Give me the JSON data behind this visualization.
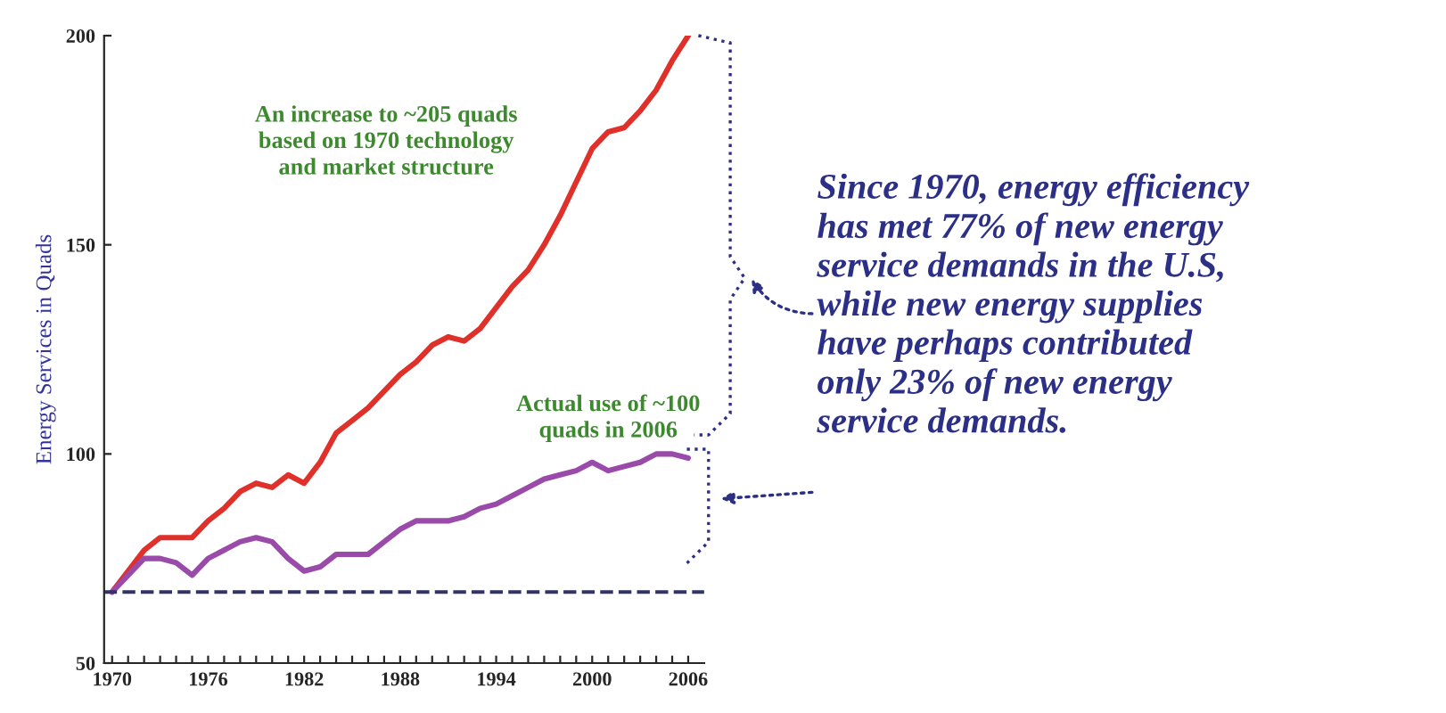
{
  "chart_data": {
    "type": "line",
    "ylabel": "Energy Services in Quads",
    "x": [
      1970,
      1971,
      1972,
      1973,
      1974,
      1975,
      1976,
      1977,
      1978,
      1979,
      1980,
      1981,
      1982,
      1983,
      1984,
      1985,
      1986,
      1987,
      1988,
      1989,
      1990,
      1991,
      1992,
      1993,
      1994,
      1995,
      1996,
      1997,
      1998,
      1999,
      2000,
      2001,
      2002,
      2003,
      2004,
      2005,
      2006
    ],
    "series": [
      {
        "color": "#e0302a",
        "values": [
          67,
          72,
          77,
          80,
          80,
          80,
          84,
          87,
          91,
          93,
          92,
          95,
          93,
          98,
          105,
          108,
          111,
          115,
          119,
          122,
          126,
          128,
          127,
          130,
          135,
          140,
          144,
          150,
          157,
          165,
          173,
          177,
          178,
          182,
          187,
          194,
          200
        ]
      },
      {
        "color": "#9a4aa8",
        "values": [
          67,
          71,
          75,
          75,
          74,
          71,
          75,
          77,
          79,
          80,
          79,
          75,
          72,
          73,
          76,
          76,
          76,
          79,
          82,
          84,
          84,
          84,
          85,
          87,
          88,
          90,
          92,
          94,
          95,
          96,
          98,
          96,
          97,
          98,
          100,
          100,
          99
        ]
      }
    ],
    "ref_lines": [
      {
        "axis": "y",
        "value": 67,
        "line_style": "dashed",
        "color": "#333366"
      }
    ],
    "xlim": [
      1969.5,
      2007
    ],
    "ylim": [
      50,
      200
    ],
    "yticks": [
      50,
      100,
      150,
      200
    ],
    "xticks": [
      1970,
      {
        "value": 1971,
        "label": null
      },
      {
        "value": 1972,
        "label": null
      },
      {
        "value": 1973,
        "label": null
      },
      {
        "value": 1974,
        "label": null
      },
      {
        "value": 1975,
        "label": null
      },
      1976,
      {
        "value": 1977,
        "label": null
      },
      {
        "value": 1978,
        "label": null
      },
      {
        "value": 1979,
        "label": null
      },
      {
        "value": 1980,
        "label": null
      },
      {
        "value": 1981,
        "label": null
      },
      1982,
      {
        "value": 1983,
        "label": null
      },
      {
        "value": 1984,
        "label": null
      },
      {
        "value": 1985,
        "label": null
      },
      {
        "value": 1986,
        "label": null
      },
      {
        "value": 1987,
        "label": null
      },
      1988,
      {
        "value": 1989,
        "label": null
      },
      {
        "value": 1990,
        "label": null
      },
      {
        "value": 1991,
        "label": null
      },
      {
        "value": 1992,
        "label": null
      },
      {
        "value": 1993,
        "label": null
      },
      1994,
      {
        "value": 1995,
        "label": null
      },
      {
        "value": 1996,
        "label": null
      },
      {
        "value": 1997,
        "label": null
      },
      {
        "value": 1998,
        "label": null
      },
      {
        "value": 1999,
        "label": null
      },
      2000,
      {
        "value": 2001,
        "label": null
      },
      {
        "value": 2002,
        "label": null
      },
      {
        "value": 2003,
        "label": null
      },
      {
        "value": 2004,
        "label": null
      },
      {
        "value": 2005,
        "label": null
      },
      2006
    ],
    "grid": false,
    "line_style": "solid",
    "marker": "none",
    "annotations": [
      "An increase to ~205 quads\nbased on 1970 technology\nand market structure",
      "Actual use of ~100\nquads in 2006",
      "Since 1970, energy efficiency\nhas met 77% of new energy\nservice demands in the U.S,\nwhile new energy supplies\nhave perhaps contributed\nonly 23% of new energy\nservice demands."
    ]
  }
}
